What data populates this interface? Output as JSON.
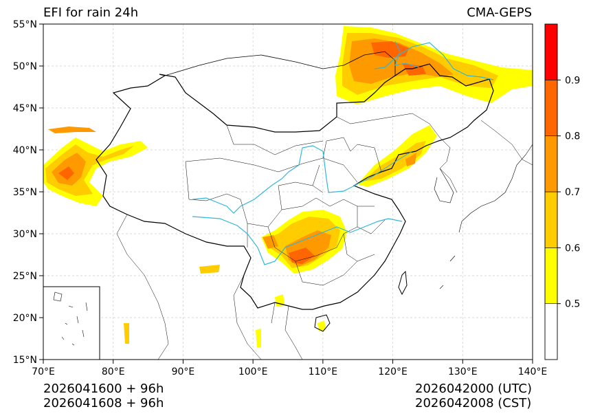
{
  "title_left": "EFI for rain 24h",
  "title_right": "CMA-GEPS",
  "lat_ticks": [
    {
      "value": 55,
      "label": "55°N"
    },
    {
      "value": 50,
      "label": "50°N"
    },
    {
      "value": 45,
      "label": "45°N"
    },
    {
      "value": 40,
      "label": "40°N"
    },
    {
      "value": 35,
      "label": "35°N"
    },
    {
      "value": 30,
      "label": "30°N"
    },
    {
      "value": 25,
      "label": "25°N"
    },
    {
      "value": 20,
      "label": "20°N"
    },
    {
      "value": 15,
      "label": "15°N"
    }
  ],
  "lon_ticks": [
    {
      "value": 70,
      "label": "70°E"
    },
    {
      "value": 80,
      "label": "80°E"
    },
    {
      "value": 90,
      "label": "90°E"
    },
    {
      "value": 100,
      "label": "100°E"
    },
    {
      "value": 110,
      "label": "110°E"
    },
    {
      "value": 120,
      "label": "120°E"
    },
    {
      "value": 130,
      "label": "130°E"
    },
    {
      "value": 140,
      "label": "140°E"
    }
  ],
  "colorbar": {
    "levels": [
      {
        "from": 0.4,
        "to": 0.5,
        "color": "#ffffff"
      },
      {
        "from": 0.5,
        "to": 0.6,
        "color": "#ffff00"
      },
      {
        "from": 0.6,
        "to": 0.7,
        "color": "#ffcc00"
      },
      {
        "from": 0.7,
        "to": 0.8,
        "color": "#ff9900"
      },
      {
        "from": 0.8,
        "to": 0.9,
        "color": "#ff6600"
      },
      {
        "from": 0.9,
        "to": 1.0,
        "color": "#ff0000"
      }
    ],
    "ticks": [
      {
        "value": 0.5,
        "label": "0.5"
      },
      {
        "value": 0.6,
        "label": "0.6"
      },
      {
        "value": 0.7,
        "label": "0.7"
      },
      {
        "value": 0.8,
        "label": "0.8"
      },
      {
        "value": 0.9,
        "label": "0.9"
      }
    ]
  },
  "footer": {
    "init_utc": "2026041600 + 96h",
    "init_cst": "2026041608 + 96h",
    "valid_utc": "2026042000 (UTC)",
    "valid_cst": "2026042008 (CST)"
  },
  "colors": {
    "river": "#2fb8d8",
    "border": "#000000",
    "grid": "#cccccc"
  }
}
